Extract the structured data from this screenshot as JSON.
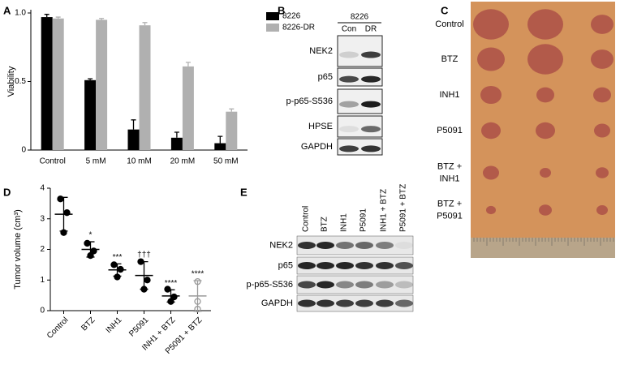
{
  "panel_labels": [
    "A",
    "B",
    "C",
    "D",
    "E"
  ],
  "chart_data": [
    {
      "type": "bar",
      "y_label": "Viability",
      "categories": [
        "Control",
        "5 mM",
        "10 mM",
        "20 mM",
        "50 mM"
      ],
      "series": [
        {
          "name": "8226",
          "color": "#000000",
          "values": [
            0.97,
            0.51,
            0.15,
            0.09,
            0.05
          ],
          "errors": [
            0.02,
            0.01,
            0.07,
            0.04,
            0.05
          ]
        },
        {
          "name": "8226-DR",
          "color": "#b0b0b0",
          "values": [
            0.96,
            0.95,
            0.91,
            0.61,
            0.28
          ],
          "errors": [
            0.01,
            0.01,
            0.02,
            0.03,
            0.02
          ]
        }
      ],
      "ylim": [
        0,
        1
      ],
      "yticks": [
        0,
        0.5,
        {
          "value": 1,
          "label": "1.0"
        }
      ]
    },
    {
      "type": "dot",
      "y_label": "Tumor volume (cm³)",
      "categories": [
        "Control",
        "BTZ",
        "INH1",
        "P5091",
        "INH1 + BTZ",
        "P5091 + BTZ"
      ],
      "points": [
        [
          3.65,
          3.2,
          2.55
        ],
        [
          2.2,
          1.95,
          1.8
        ],
        [
          1.5,
          1.35,
          1.1
        ],
        [
          1.6,
          1.0,
          0.7
        ],
        [
          0.7,
          0.45,
          0.3
        ],
        [
          0.95,
          0.3,
          0.05
        ]
      ],
      "means": [
        3.15,
        2.0,
        1.33,
        1.15,
        0.48,
        0.48
      ],
      "sd": [
        0.55,
        0.25,
        0.2,
        0.45,
        0.2,
        0.5
      ],
      "annotations": [
        null,
        "*",
        "***",
        "†††",
        "****",
        "****"
      ],
      "colors": [
        "#000000",
        "#000000",
        "#000000",
        "#000000",
        "#000000",
        "#999999"
      ],
      "ylim": [
        0,
        4
      ],
      "yticks": [
        0,
        1,
        2,
        3,
        4
      ]
    }
  ],
  "blot_b": {
    "cell_line": "8226",
    "lanes": [
      "Con",
      "DR"
    ],
    "rows": [
      "NEK2",
      "p65",
      "p-p65-S536",
      "HPSE",
      "GAPDH"
    ]
  },
  "photo_c": {
    "rows": [
      [
        "Control"
      ],
      [
        "BTZ"
      ],
      [
        "INH1"
      ],
      [
        "P5091"
      ],
      [
        "BTZ +",
        "INH1"
      ],
      [
        "BTZ +",
        "P5091"
      ]
    ]
  },
  "blot_e": {
    "lanes": [
      "Control",
      "BTZ",
      "INH1",
      "P5091",
      "INH1 + BTZ",
      "P5091 + BTZ"
    ],
    "rows": [
      "NEK2",
      "p65",
      "p-p65-S536",
      "GAPDH"
    ]
  }
}
